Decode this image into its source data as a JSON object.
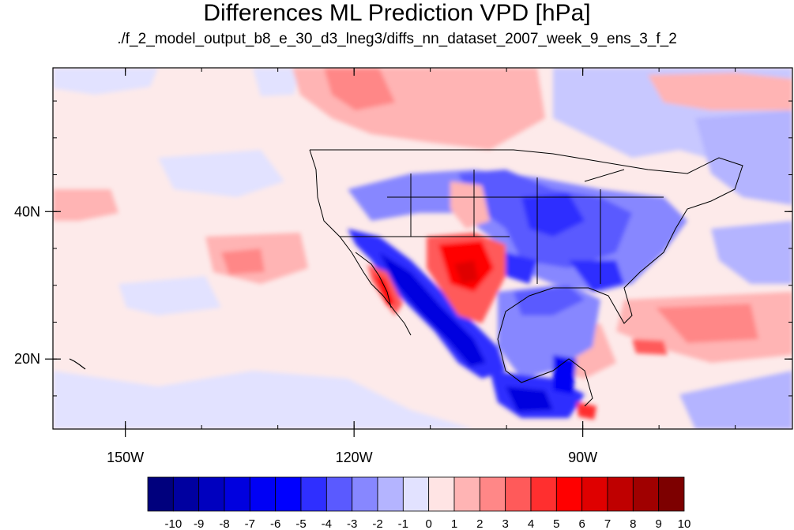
{
  "title": "Differences ML Prediction VPD [hPa]",
  "subtitle": "./f_2_model_output_b8_e_30_d3_lneg3/diffs_nn_dataset_2007_week_9_ens_3_f_2",
  "lon_ticks": [
    {
      "label": "150W",
      "lon": -150
    },
    {
      "label": "120W",
      "lon": -120
    },
    {
      "label": "90W",
      "lon": -90
    }
  ],
  "lat_ticks": [
    {
      "label": "40N",
      "lat": 40
    },
    {
      "label": "20N",
      "lat": 20
    }
  ],
  "map_extent": {
    "lon_min": -159.5,
    "lon_max": -62.5,
    "lat_min": 10.5,
    "lat_max": 59.5
  },
  "colorbar": {
    "labels": [
      "-10",
      "-9",
      "-8",
      "-7",
      "-6",
      "-5",
      "-4",
      "-3",
      "-2",
      "-1",
      "0",
      "1",
      "2",
      "3",
      "4",
      "5",
      "6",
      "7",
      "8",
      "9",
      "10"
    ],
    "colors": [
      "#00007d",
      "#0000a0",
      "#0000bf",
      "#0000df",
      "#0000f5",
      "#0000ff",
      "#2f2fff",
      "#5a5aff",
      "#8787ff",
      "#b4b4ff",
      "#e2e2ff",
      "#ffe4e4",
      "#ffb4b4",
      "#ff8787",
      "#ff5a5a",
      "#ff2f2f",
      "#ff0000",
      "#df0000",
      "#bf0000",
      "#a00000",
      "#7d0000"
    ]
  }
}
